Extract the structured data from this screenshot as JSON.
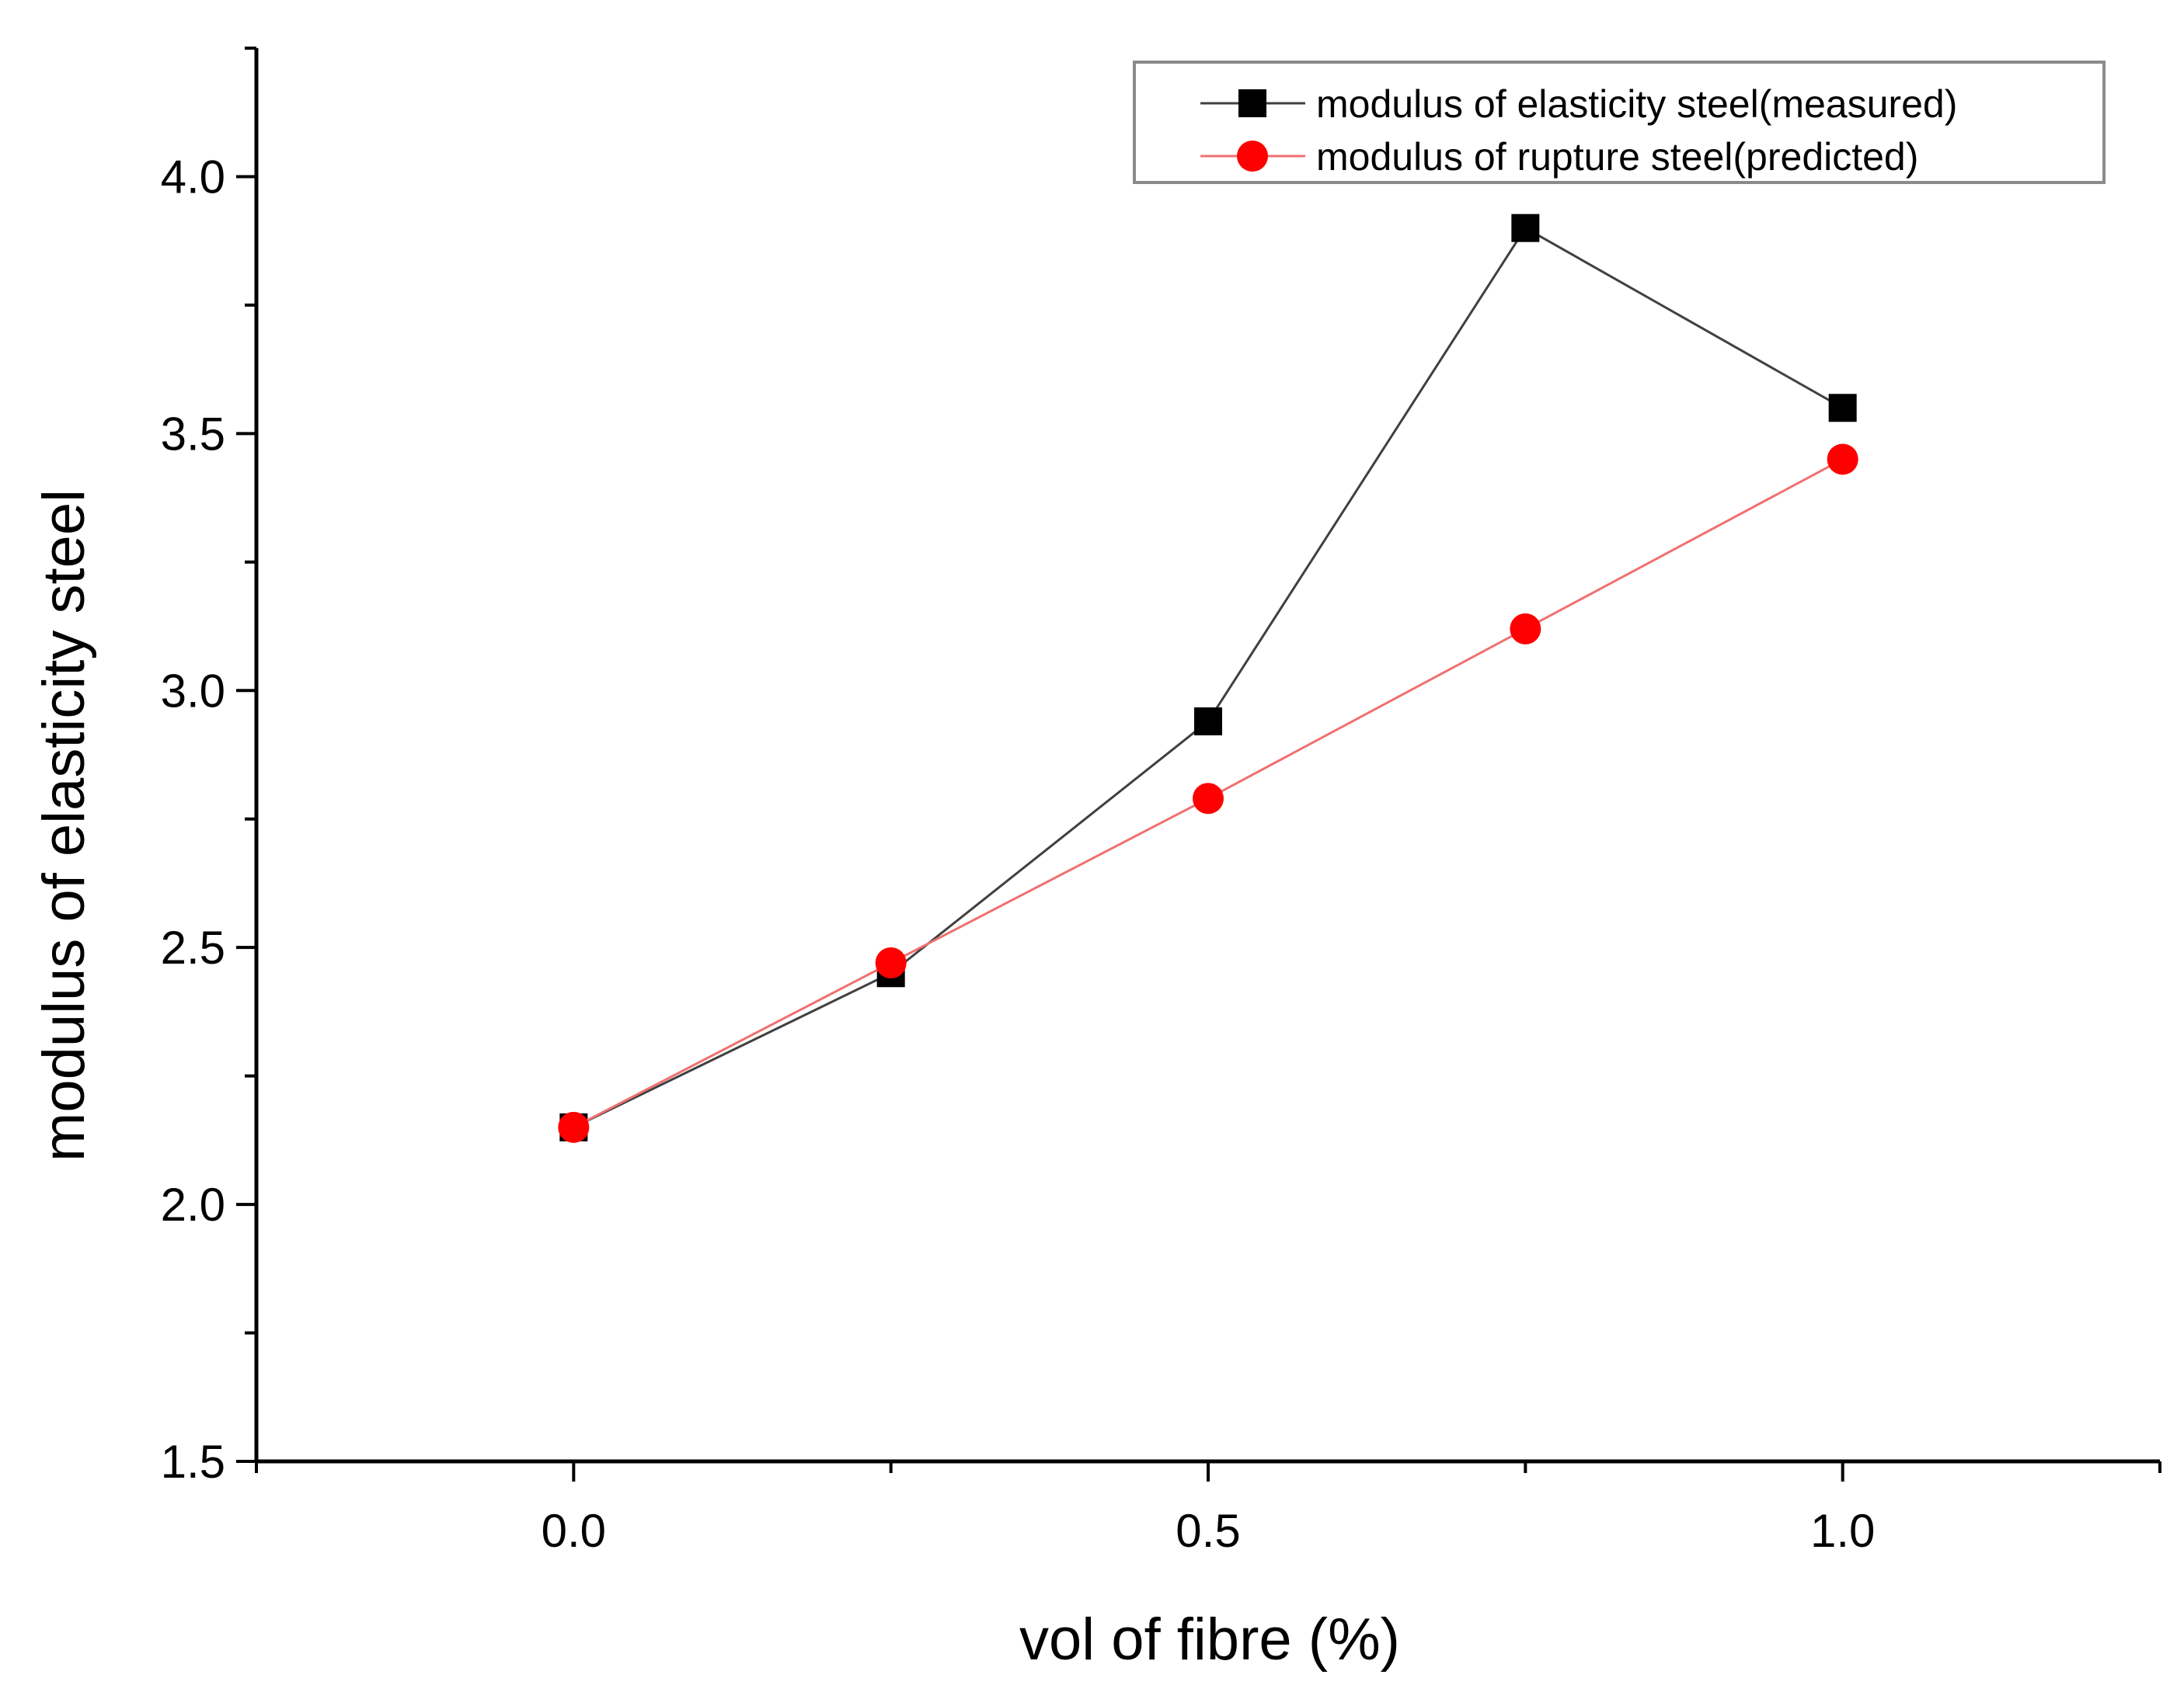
{
  "chart_data": {
    "type": "line",
    "title": "",
    "xlabel": "vol of fibre (%)",
    "ylabel": "modulus of elasticity steel",
    "xlim": [
      -0.25,
      1.25
    ],
    "ylim": [
      1.5,
      4.25
    ],
    "x_major_ticks": [
      0.0,
      0.5,
      1.0
    ],
    "x_minor_ticks": [
      -0.25,
      0.25,
      0.75,
      1.25
    ],
    "x_tick_labels": [
      "0.0",
      "0.5",
      "1.0"
    ],
    "y_major_ticks": [
      1.5,
      2.0,
      2.5,
      3.0,
      3.5,
      4.0
    ],
    "y_minor_ticks": [
      1.75,
      2.25,
      2.75,
      3.25,
      3.75,
      4.25
    ],
    "y_tick_labels": [
      "1.5",
      "2.0",
      "2.5",
      "3.0",
      "3.5",
      "4.0"
    ],
    "grid": false,
    "legend_position": "top-right",
    "series": [
      {
        "name": "modulus of elasticity steel(measured)",
        "marker": "square",
        "color": "#000000",
        "line_color": "#404040",
        "x": [
          0.0,
          0.25,
          0.5,
          0.75,
          1.0
        ],
        "values": [
          2.15,
          2.45,
          2.94,
          3.9,
          3.55
        ]
      },
      {
        "name": "modulus of rupture steel(predicted)",
        "marker": "circle",
        "color": "#ff0000",
        "line_color": "#f07070",
        "x": [
          0.0,
          0.25,
          0.5,
          0.75,
          1.0
        ],
        "values": [
          2.15,
          2.47,
          2.79,
          3.12,
          3.45
        ]
      }
    ]
  }
}
